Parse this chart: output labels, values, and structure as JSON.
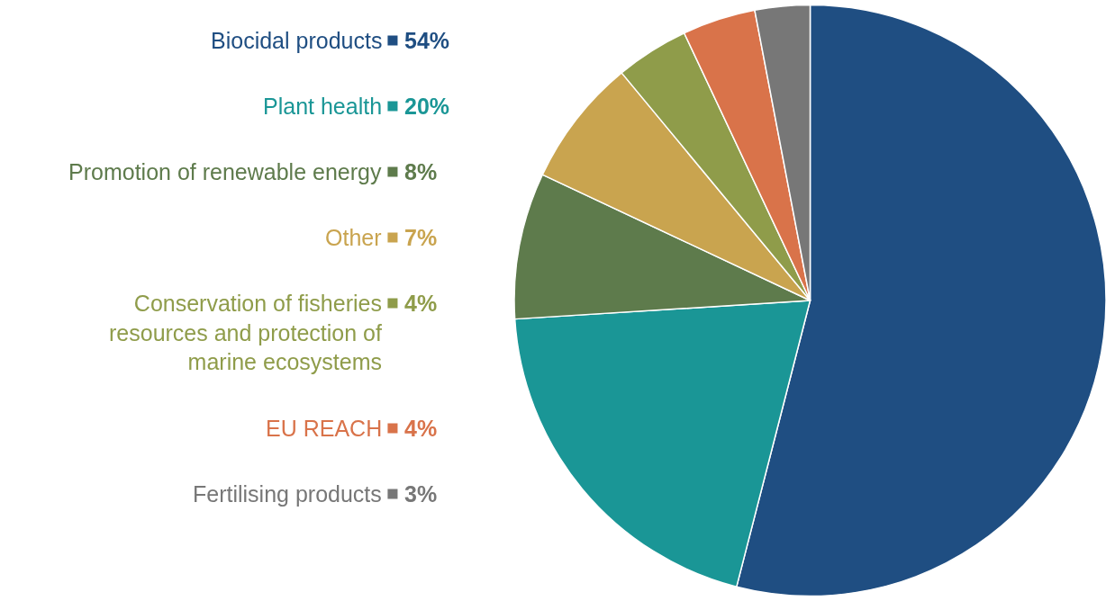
{
  "chart_data": {
    "type": "pie",
    "categories": [
      "Biocidal products",
      "Plant health",
      "Promotion of renewable energy",
      "Other",
      "Conservation of fisheries resources and protection of marine ecosystems",
      "EU REACH",
      "Fertilising products"
    ],
    "values": [
      54,
      20,
      8,
      7,
      4,
      4,
      3
    ],
    "value_labels": [
      "54%",
      "20%",
      "8%",
      "7%",
      "4%",
      "4%",
      "3%"
    ],
    "colors": [
      "#1f4e82",
      "#1a9696",
      "#5e7b4c",
      "#c9a44f",
      "#8f9c4a",
      "#d9734a",
      "#777777"
    ],
    "legend": "left"
  }
}
